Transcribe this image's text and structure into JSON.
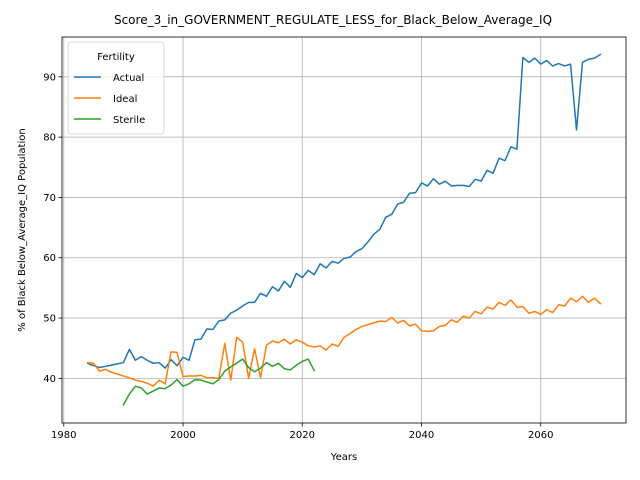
{
  "chart_data": {
    "type": "line",
    "title": "Score_3_in_GOVERNMENT_REGULATE_LESS_for_Black_Below_Average_IQ",
    "xlabel": "Years",
    "ylabel": "% of Black Below_Average_IQ Population",
    "xlim": [
      1979.7,
      2074.3
    ],
    "ylim": [
      32.6,
      96.6
    ],
    "xticks": [
      1980,
      2000,
      2020,
      2040,
      2060
    ],
    "yticks": [
      40,
      50,
      60,
      70,
      80,
      90
    ],
    "grid": true,
    "legend": {
      "title": "Fertility",
      "placement": "top-left"
    },
    "series": [
      {
        "name": "Actual",
        "color": "#1f77b4",
        "x": [
          1984,
          1985,
          1986,
          1987,
          1988,
          1989,
          1990,
          1991,
          1992,
          1993,
          1994,
          1995,
          1996,
          1997,
          1998,
          1999,
          2000,
          2001,
          2002,
          2003,
          2004,
          2005,
          2006,
          2007,
          2008,
          2009,
          2010,
          2011,
          2012,
          2013,
          2014,
          2015,
          2016,
          2017,
          2018,
          2019,
          2020,
          2021,
          2022,
          2023,
          2024,
          2025,
          2026,
          2027,
          2028,
          2029,
          2030,
          2031,
          2032,
          2033,
          2034,
          2035,
          2036,
          2037,
          2038,
          2039,
          2040,
          2041,
          2042,
          2043,
          2044,
          2045,
          2046,
          2047,
          2048,
          2049,
          2050,
          2051,
          2052,
          2053,
          2054,
          2055,
          2056,
          2057,
          2058,
          2059,
          2060,
          2061,
          2062,
          2063,
          2064,
          2065,
          2066,
          2067,
          2068,
          2069,
          2070
        ],
        "values": [
          42.5,
          42.1,
          41.8,
          42.0,
          42.2,
          42.4,
          42.6,
          44.8,
          43.0,
          43.6,
          43.0,
          42.5,
          42.6,
          41.7,
          43.1,
          42.1,
          43.5,
          43.0,
          46.4,
          46.5,
          48.2,
          48.1,
          49.5,
          49.7,
          50.8,
          51.3,
          52.0,
          52.6,
          52.6,
          54.1,
          53.6,
          55.2,
          54.5,
          56.1,
          55.1,
          57.4,
          56.7,
          57.9,
          57.2,
          59.0,
          58.3,
          59.4,
          59.1,
          59.9,
          60.1,
          61.0,
          61.5,
          62.6,
          63.9,
          64.7,
          66.7,
          67.2,
          68.9,
          69.2,
          70.7,
          70.8,
          72.4,
          71.9,
          73.1,
          72.2,
          72.7,
          71.9,
          72.0,
          72.0,
          71.8,
          73.0,
          72.7,
          74.5,
          74.0,
          76.5,
          76.1,
          78.4,
          78.0,
          93.2,
          92.4,
          93.1,
          92.1,
          92.7,
          91.8,
          92.2,
          91.8,
          92.1,
          81.2,
          92.4,
          92.9,
          93.1,
          93.7
        ]
      },
      {
        "name": "Ideal",
        "color": "#ff7f0e",
        "x": [
          1984,
          1985,
          1986,
          1987,
          1988,
          1989,
          1990,
          1991,
          1992,
          1993,
          1994,
          1995,
          1996,
          1997,
          1998,
          1999,
          2000,
          2001,
          2002,
          2003,
          2004,
          2005,
          2006,
          2007,
          2008,
          2009,
          2010,
          2011,
          2012,
          2013,
          2014,
          2015,
          2016,
          2017,
          2018,
          2019,
          2020,
          2021,
          2022,
          2023,
          2024,
          2025,
          2026,
          2027,
          2028,
          2029,
          2030,
          2031,
          2032,
          2033,
          2034,
          2035,
          2036,
          2037,
          2038,
          2039,
          2040,
          2041,
          2042,
          2043,
          2044,
          2045,
          2046,
          2047,
          2048,
          2049,
          2050,
          2051,
          2052,
          2053,
          2054,
          2055,
          2056,
          2057,
          2058,
          2059,
          2060,
          2061,
          2062,
          2063,
          2064,
          2065,
          2066,
          2067,
          2068,
          2069,
          2070
        ],
        "values": [
          42.6,
          42.5,
          41.2,
          41.5,
          41.0,
          40.7,
          40.4,
          40.1,
          39.7,
          39.5,
          39.2,
          38.7,
          39.7,
          39.1,
          44.4,
          44.3,
          40.3,
          40.4,
          40.4,
          40.5,
          40.1,
          40.1,
          40.0,
          45.8,
          39.7,
          46.8,
          46.0,
          40.0,
          44.9,
          40.1,
          45.5,
          46.2,
          45.9,
          46.5,
          45.7,
          46.4,
          46.0,
          45.4,
          45.2,
          45.4,
          44.7,
          45.7,
          45.3,
          46.8,
          47.4,
          48.1,
          48.6,
          48.9,
          49.2,
          49.5,
          49.4,
          50.1,
          49.2,
          49.6,
          48.7,
          49.0,
          47.9,
          47.8,
          47.9,
          48.6,
          48.8,
          49.7,
          49.3,
          50.3,
          50.0,
          51.1,
          50.7,
          51.8,
          51.5,
          52.6,
          52.1,
          53.0,
          51.8,
          51.9,
          50.8,
          51.1,
          50.6,
          51.4,
          50.9,
          52.2,
          52.0,
          53.3,
          52.7,
          53.6,
          52.6,
          53.3,
          52.4
        ]
      },
      {
        "name": "Sterile",
        "color": "#2ca02c",
        "x": [
          1990,
          1991,
          1992,
          1993,
          1994,
          1995,
          1996,
          1997,
          1998,
          1999,
          2000,
          2001,
          2002,
          2003,
          2004,
          2005,
          2006,
          2007,
          2008,
          2009,
          2010,
          2011,
          2012,
          2013,
          2014,
          2015,
          2016,
          2017,
          2018,
          2019,
          2020,
          2021,
          2022
        ],
        "values": [
          35.6,
          37.4,
          38.7,
          38.4,
          37.4,
          37.9,
          38.4,
          38.3,
          38.9,
          39.8,
          38.7,
          39.1,
          39.8,
          39.7,
          39.4,
          39.1,
          39.8,
          41.2,
          41.9,
          42.5,
          43.2,
          41.8,
          41.1,
          41.7,
          42.6,
          42.0,
          42.5,
          41.6,
          41.4,
          42.2,
          42.8,
          43.2,
          41.3
        ]
      }
    ]
  }
}
